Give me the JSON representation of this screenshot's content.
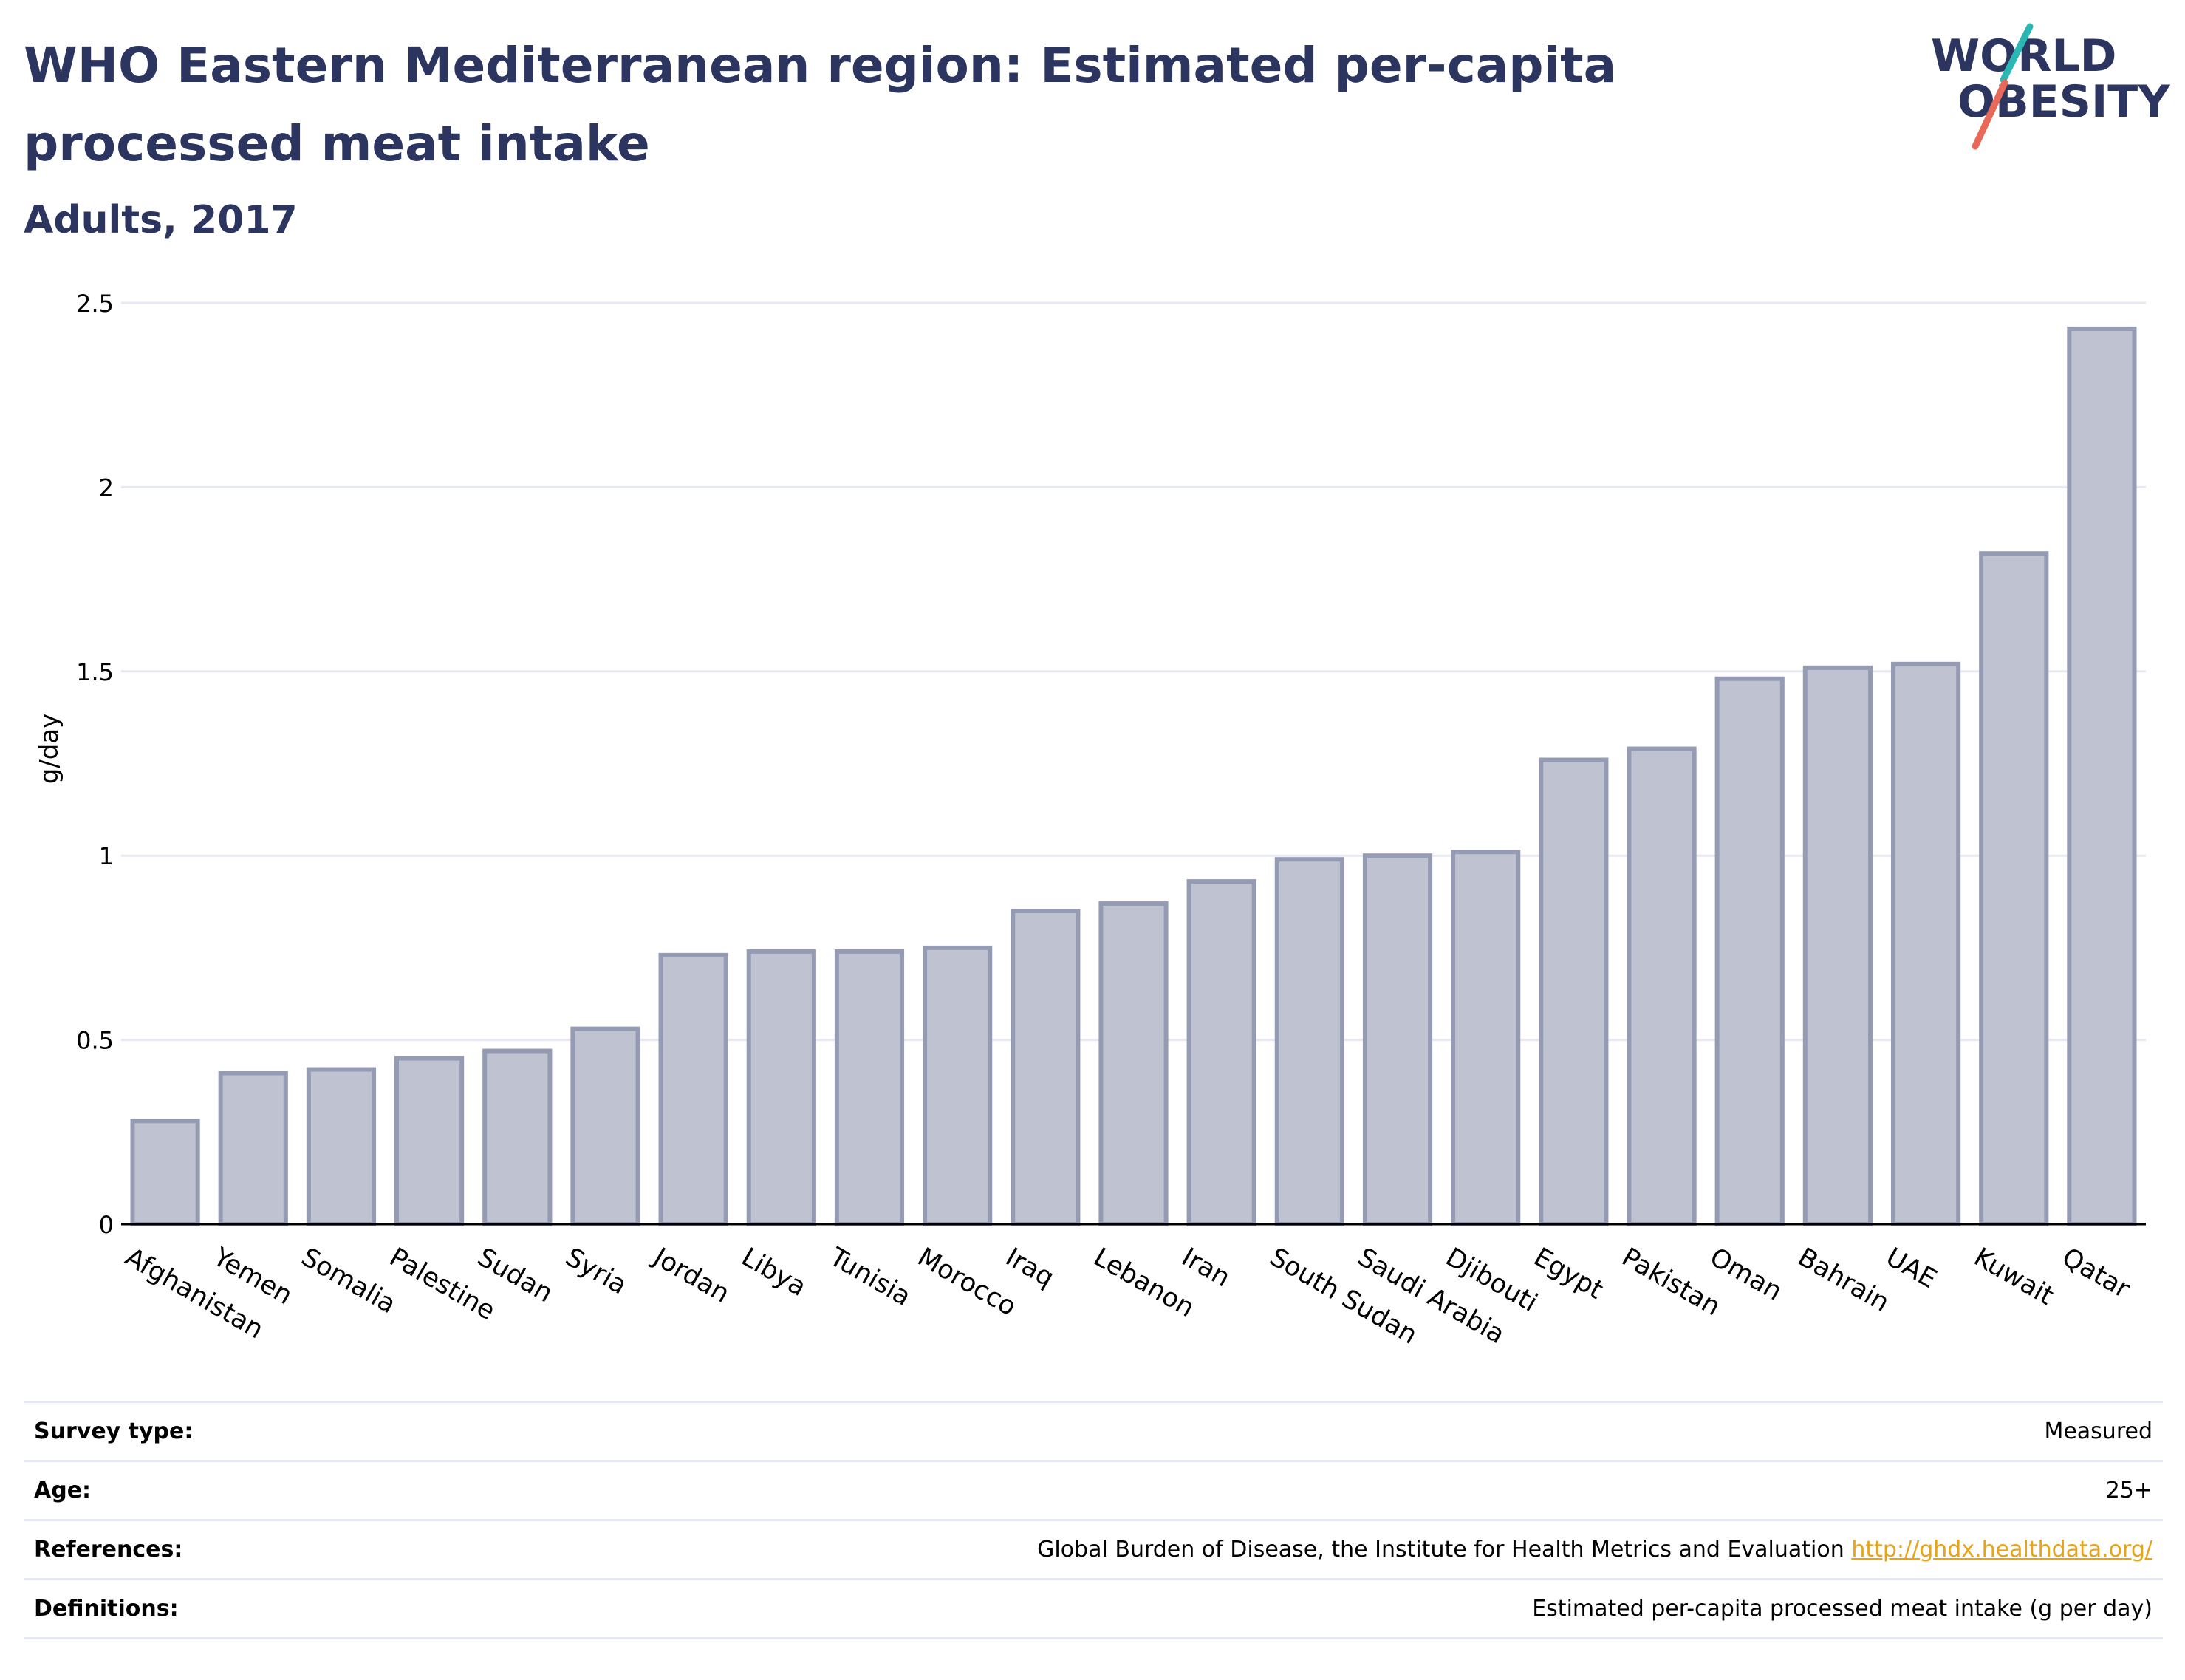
{
  "header": {
    "title": "WHO Eastern Mediterranean region: Estimated per-capita processed meat intake",
    "subtitle": "Adults, 2017"
  },
  "logo": {
    "line1": "WORLD",
    "line2": "OBESITY",
    "colors": {
      "text": "#2b355f",
      "teal": "#2bb7b3",
      "coral": "#e8685a"
    }
  },
  "chart_data": {
    "type": "bar",
    "title": "WHO Eastern Mediterranean region: Estimated per-capita processed meat intake",
    "subtitle": "Adults, 2017",
    "xlabel": "",
    "ylabel": "g/day",
    "ylim": [
      0,
      2.5
    ],
    "yticks": [
      0,
      0.5,
      1,
      1.5,
      2,
      2.5
    ],
    "ytick_labels": [
      "0",
      "0.5",
      "1",
      "1.5",
      "2",
      "2.5"
    ],
    "grid": true,
    "categories": [
      "Afghanistan",
      "Yemen",
      "Somalia",
      "Palestine",
      "Sudan",
      "Syria",
      "Jordan",
      "Libya",
      "Tunisia",
      "Morocco",
      "Iraq",
      "Lebanon",
      "Iran",
      "South Sudan",
      "Saudi Arabia",
      "Djibouti",
      "Egypt",
      "Pakistan",
      "Oman",
      "Bahrain",
      "UAE",
      "Kuwait",
      "Qatar"
    ],
    "values": [
      0.28,
      0.41,
      0.42,
      0.45,
      0.47,
      0.53,
      0.73,
      0.74,
      0.74,
      0.75,
      0.85,
      0.87,
      0.93,
      0.99,
      1.0,
      1.01,
      1.26,
      1.29,
      1.48,
      1.51,
      1.52,
      1.82,
      2.43
    ],
    "colors": {
      "bar_fill": "#bfc2d0",
      "bar_stroke": "#969bb4",
      "grid": "#e6e9f3",
      "axis": "#000000",
      "text": "#000000"
    }
  },
  "meta": {
    "rows": [
      {
        "label": "Survey type:",
        "value": "Measured"
      },
      {
        "label": "Age:",
        "value": "25+"
      },
      {
        "label": "References:",
        "value": "Global Burden of Disease, the Institute for Health Metrics and Evaluation",
        "link": "http://ghdx.healthdata.org/"
      },
      {
        "label": "Definitions:",
        "value": "Estimated per-capita processed meat intake (g per day)"
      }
    ]
  }
}
